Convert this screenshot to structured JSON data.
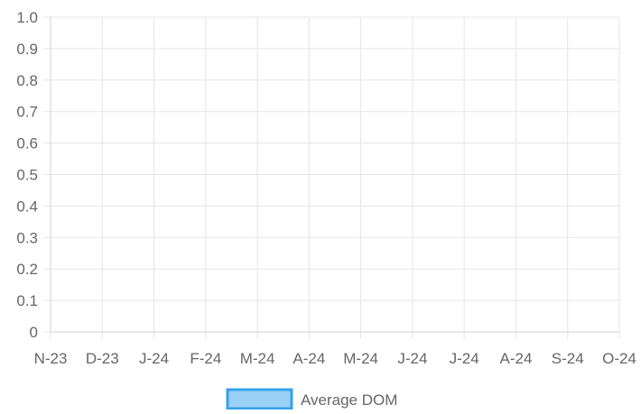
{
  "chart_data": {
    "type": "bar",
    "title": "",
    "xlabel": "",
    "ylabel": "",
    "categories": [
      "N-23",
      "D-23",
      "J-24",
      "F-24",
      "M-24",
      "A-24",
      "M-24",
      "J-24",
      "J-24",
      "A-24",
      "S-24",
      "O-24"
    ],
    "yticks": [
      "0",
      "0.1",
      "0.2",
      "0.3",
      "0.4",
      "0.5",
      "0.6",
      "0.7",
      "0.8",
      "0.9",
      "1.0"
    ],
    "ylim": [
      0,
      1.0
    ],
    "grid": true,
    "legend_position": "bottom-center",
    "series": [
      {
        "name": "Average DOM",
        "values": [
          null,
          null,
          null,
          null,
          null,
          null,
          null,
          null,
          null,
          null,
          null,
          null
        ],
        "fill_color": "#9ad0f5",
        "border_color": "#36a2eb"
      }
    ]
  }
}
